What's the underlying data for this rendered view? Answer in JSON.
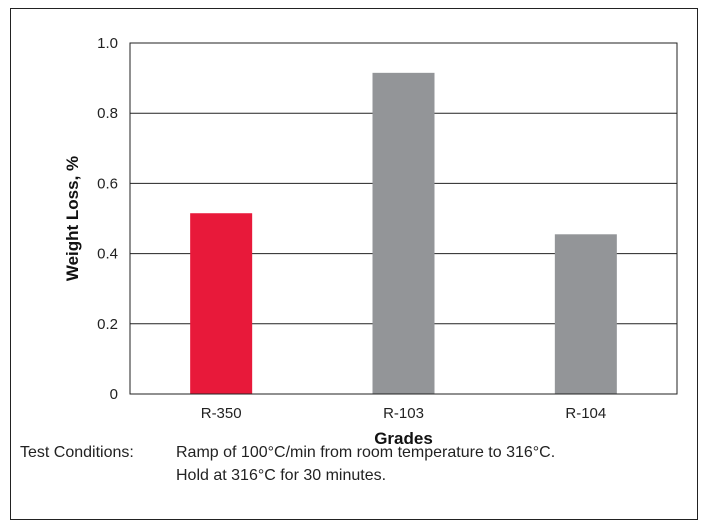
{
  "chart_data": {
    "type": "bar",
    "categories": [
      "R-350",
      "R-103",
      "R-104"
    ],
    "values": [
      0.515,
      0.915,
      0.455
    ],
    "bar_colors": [
      "#e8193a",
      "#939598",
      "#939598"
    ],
    "title": "",
    "xlabel": "Grades",
    "ylabel": "Weight Loss, %",
    "ylim": [
      0,
      1.0
    ],
    "yticks": [
      0,
      0.2,
      0.4,
      0.6,
      0.8,
      1.0
    ],
    "ytick_labels": [
      "0",
      "0.2",
      "0.4",
      "0.6",
      "0.8",
      "1.0"
    ],
    "grid": "horizontal"
  },
  "notes": {
    "label": "Test Conditions:",
    "line1": "Ramp of 100°C/min from room temperature to 316°C.",
    "line2": "Hold at 316°C for 30 minutes."
  }
}
